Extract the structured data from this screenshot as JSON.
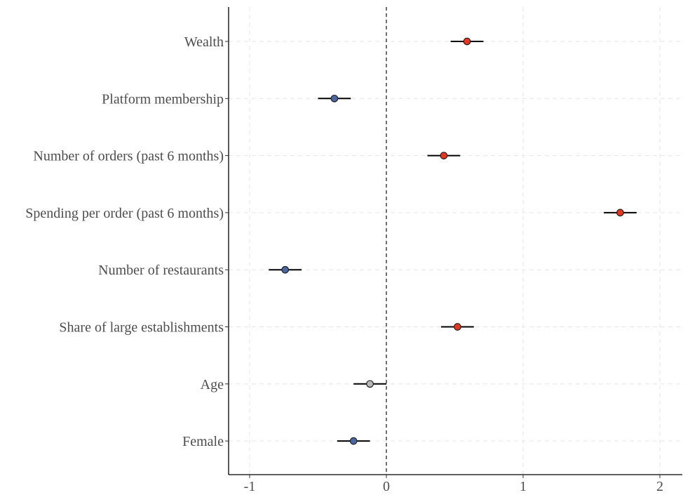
{
  "chart_data": {
    "type": "forest",
    "title": "",
    "xlabel": "",
    "ylabel": "",
    "xlim": [
      -1.15,
      2.15
    ],
    "x_ticks": [
      -1,
      0,
      1,
      2
    ],
    "x_tick_labels": [
      "-1",
      "0",
      "1",
      "2"
    ],
    "reference_line": 0,
    "grid": true,
    "colors": {
      "positive": "#e8351f",
      "negative": "#4a66a1",
      "neutral": "#b8b8b8"
    },
    "rows": [
      {
        "label": "Wealth",
        "estimate": 0.59,
        "ci_low": 0.47,
        "ci_high": 0.71,
        "sign": "positive"
      },
      {
        "label": "Platform membership",
        "estimate": -0.38,
        "ci_low": -0.5,
        "ci_high": -0.26,
        "sign": "negative"
      },
      {
        "label": "Number of orders (past 6 months)",
        "estimate": 0.42,
        "ci_low": 0.3,
        "ci_high": 0.54,
        "sign": "positive"
      },
      {
        "label": "Spending per order (past 6 months)",
        "estimate": 1.71,
        "ci_low": 1.59,
        "ci_high": 1.83,
        "sign": "positive"
      },
      {
        "label": "Number of restaurants",
        "estimate": -0.74,
        "ci_low": -0.86,
        "ci_high": -0.62,
        "sign": "negative"
      },
      {
        "label": "Share of large establishments",
        "estimate": 0.52,
        "ci_low": 0.4,
        "ci_high": 0.64,
        "sign": "positive"
      },
      {
        "label": "Age",
        "estimate": -0.12,
        "ci_low": -0.24,
        "ci_high": 0.0,
        "sign": "neutral"
      },
      {
        "label": "Female",
        "estimate": -0.24,
        "ci_low": -0.36,
        "ci_high": -0.12,
        "sign": "negative"
      }
    ]
  }
}
